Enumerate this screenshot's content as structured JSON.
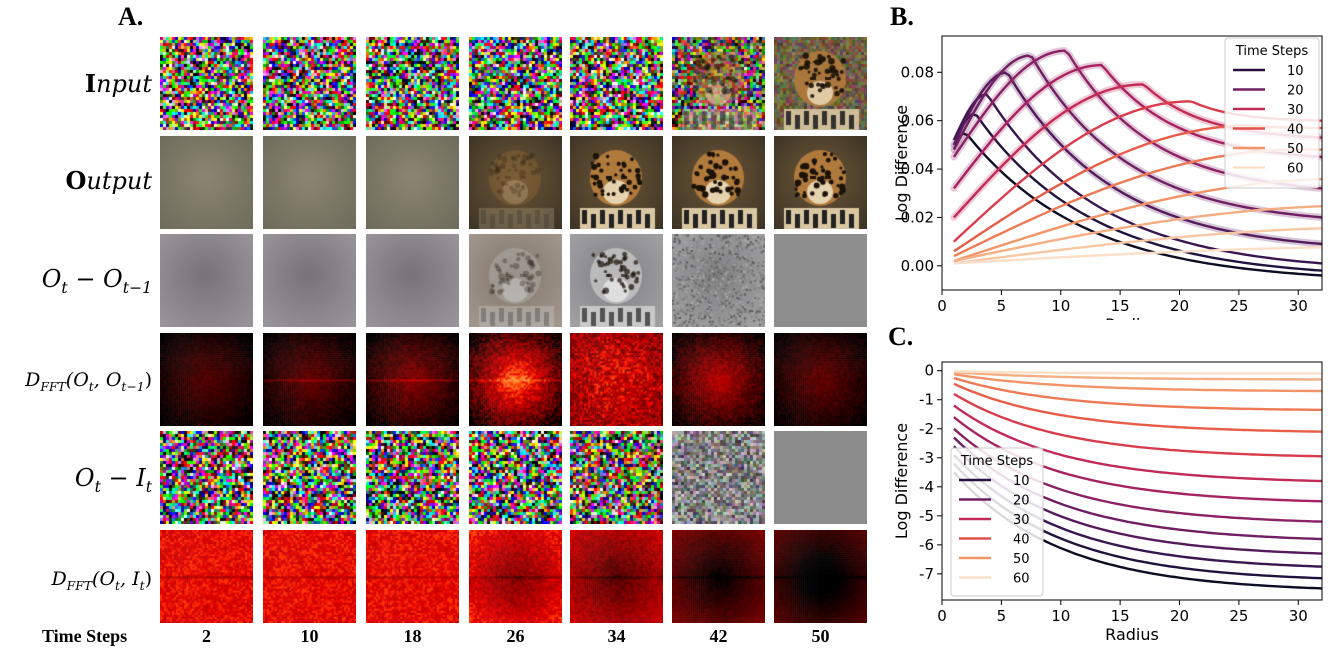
{
  "panels": {
    "a": "A.",
    "b": "B.",
    "c": "C."
  },
  "grid": {
    "rows": [
      {
        "name": "input",
        "kind": "noise"
      },
      {
        "name": "output",
        "kind": "image"
      },
      {
        "name": "diff-prev",
        "kind": "diff"
      },
      {
        "name": "fft-prev",
        "kind": "fft"
      },
      {
        "name": "diff-input",
        "kind": "noise2"
      },
      {
        "name": "fft-input",
        "kind": "fft2"
      }
    ],
    "row_labels": {
      "input_b": "I",
      "input_rest": "nput",
      "output_b": "O",
      "output_rest": "utput",
      "diff_prev_o": "O",
      "diff_prev_sub1": "t",
      "diff_prev_minus": " − O",
      "diff_prev_sub2": "t−1",
      "fft_prev_d": "D",
      "fft_prev_sub": "FFT",
      "fft_prev_args": "(O",
      "fft_prev_t": "t",
      "fft_prev_mid": ", O",
      "fft_prev_t1": "t−1",
      "fft_prev_close": ")",
      "diff_input_o": "O",
      "diff_input_t": "t",
      "diff_input_mid": " − I",
      "diff_input_t2": "t",
      "fft_input_d": "D",
      "fft_input_sub": "FFT",
      "fft_input_args": "(O",
      "fft_input_t": "t",
      "fft_input_mid": ", I",
      "fft_input_t2": "t",
      "fft_input_close": ")"
    },
    "time_steps_label": "Time Steps",
    "columns": [
      "2",
      "10",
      "18",
      "26",
      "34",
      "42",
      "50"
    ]
  },
  "chart_data": [
    {
      "type": "line",
      "panel": "B",
      "xlabel": "Radius",
      "ylabel": "Log Difference",
      "xlim": [
        0,
        32
      ],
      "ylim": [
        -0.01,
        0.095
      ],
      "xticks": [
        "0",
        "5",
        "10",
        "15",
        "20",
        "25",
        "30"
      ],
      "yticks": [
        "0.00",
        "0.02",
        "0.04",
        "0.06",
        "0.08"
      ],
      "legend_title": "Time Steps",
      "legend_placement": "top-right",
      "legend_entries": [
        "10",
        "20",
        "30",
        "40",
        "50",
        "60"
      ],
      "series": [
        {
          "start": 0.05,
          "peak": 0.055,
          "peak_x": 2,
          "end": -0.004,
          "color": "#0d0d25"
        },
        {
          "start": 0.05,
          "peak": 0.063,
          "peak_x": 2.8,
          "end": -0.002,
          "color": "#20133d"
        },
        {
          "start": 0.052,
          "peak": 0.071,
          "peak_x": 3.8,
          "end": 0.001,
          "color": "#3a1650"
        },
        {
          "start": 0.05,
          "peak": 0.08,
          "peak_x": 5.5,
          "end": 0.009,
          "color": "#541a5c"
        },
        {
          "start": 0.048,
          "peak": 0.087,
          "peak_x": 7.5,
          "end": 0.02,
          "color": "#6f1f62"
        },
        {
          "start": 0.045,
          "peak": 0.089,
          "peak_x": 10.5,
          "end": 0.032,
          "color": "#8b2265"
        },
        {
          "start": 0.032,
          "peak": 0.083,
          "peak_x": 13.5,
          "end": 0.045,
          "color": "#a62262"
        },
        {
          "start": 0.02,
          "peak": 0.075,
          "peak_x": 17,
          "end": 0.053,
          "color": "#c22a58"
        },
        {
          "start": 0.01,
          "peak": 0.068,
          "peak_x": 21,
          "end": 0.06,
          "color": "#d93d4d"
        },
        {
          "start": 0.006,
          "peak": 0.058,
          "peak_x": 26,
          "end": 0.057,
          "color": "#e85d48"
        },
        {
          "start": 0.004,
          "peak": 0.048,
          "peak_x": 30,
          "end": 0.048,
          "color": "#ee7a55"
        },
        {
          "start": 0.002,
          "peak": 0.036,
          "peak_x": 34,
          "end": 0.035,
          "color": "#f29468"
        },
        {
          "start": 0.002,
          "peak": 0.025,
          "peak_x": 36,
          "end": 0.023,
          "color": "#f5ae83"
        },
        {
          "start": 0.001,
          "peak": 0.016,
          "peak_x": 38,
          "end": 0.013,
          "color": "#f8c8a4"
        },
        {
          "start": 0.001,
          "peak": 0.008,
          "peak_x": 40,
          "end": 0.006,
          "color": "#fbe0c9"
        }
      ]
    },
    {
      "type": "line",
      "panel": "C",
      "xlabel": "Radius",
      "ylabel": "Log Difference",
      "xlim": [
        0,
        32
      ],
      "ylim": [
        -7.9,
        0.3
      ],
      "xticks": [
        "0",
        "5",
        "10",
        "15",
        "20",
        "25",
        "30"
      ],
      "yticks": [
        "0",
        "-1",
        "-2",
        "-3",
        "-4",
        "-5",
        "-6",
        "-7"
      ],
      "legend_title": "Time Steps",
      "legend_placement": "center-left",
      "legend_entries": [
        "10",
        "20",
        "30",
        "40",
        "50",
        "60"
      ],
      "series": [
        {
          "start": -3.5,
          "end": -7.5,
          "color": "#0d0d25"
        },
        {
          "start": -3.2,
          "end": -7.15,
          "color": "#20133d"
        },
        {
          "start": -2.9,
          "end": -6.75,
          "color": "#3a1650"
        },
        {
          "start": -2.6,
          "end": -6.3,
          "color": "#541a5c"
        },
        {
          "start": -2.3,
          "end": -5.8,
          "color": "#6f1f62"
        },
        {
          "start": -2.0,
          "end": -5.2,
          "color": "#8b2265"
        },
        {
          "start": -1.6,
          "end": -4.5,
          "color": "#a62262"
        },
        {
          "start": -1.2,
          "end": -3.8,
          "color": "#c22a58"
        },
        {
          "start": -0.8,
          "end": -2.95,
          "color": "#d93d4d"
        },
        {
          "start": -0.45,
          "end": -2.1,
          "color": "#e85d48"
        },
        {
          "start": -0.25,
          "end": -1.35,
          "color": "#ee7a55"
        },
        {
          "start": -0.12,
          "end": -0.7,
          "color": "#f29468"
        },
        {
          "start": -0.05,
          "end": -0.3,
          "color": "#f5ae83"
        },
        {
          "start": -0.02,
          "end": -0.1,
          "color": "#fbe0c9"
        }
      ]
    }
  ],
  "legend_colors": [
    "#2a1040",
    "#6f1f62",
    "#c22a58",
    "#e3514a",
    "#f29468",
    "#fbe0c9"
  ]
}
